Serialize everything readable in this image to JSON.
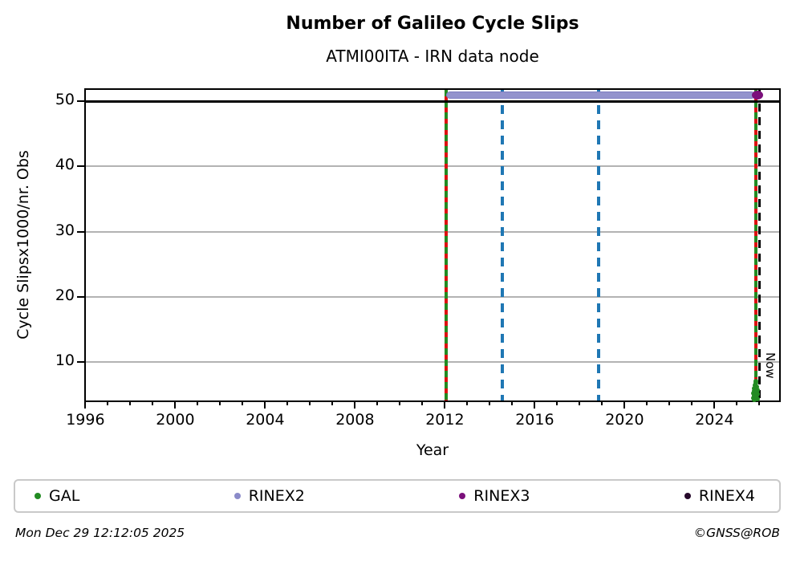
{
  "chart_data": {
    "type": "scatter",
    "title": "Number of Galileo Cycle Slips",
    "subtitle": "ATMI00ITA - IRN data node",
    "xlabel": "Year",
    "ylabel": "Cycle Slipsx1000/nr. Obs",
    "xlim": [
      1995.95,
      2026.95
    ],
    "ylim": [
      3.85,
      52.0
    ],
    "xticks": [
      1996,
      2000,
      2004,
      2008,
      2012,
      2016,
      2020,
      2024
    ],
    "xminor_step": 1,
    "yticks": [
      10,
      20,
      30,
      40,
      50
    ],
    "grid": "horizontal",
    "grid_color": "#b3b3b3",
    "threshold_line": {
      "y": 50,
      "color": "#000000"
    },
    "series": [
      {
        "name": "GAL",
        "color": "#228B22",
        "marker": "dot",
        "points": [
          [
            2025.72,
            4.5
          ],
          [
            2025.74,
            5.2
          ],
          [
            2025.76,
            4.2
          ],
          [
            2025.76,
            6.0
          ],
          [
            2025.78,
            5.6
          ],
          [
            2025.78,
            4.8
          ],
          [
            2025.8,
            6.4
          ],
          [
            2025.8,
            5.0
          ],
          [
            2025.82,
            4.3
          ],
          [
            2025.82,
            5.9
          ],
          [
            2025.84,
            6.8
          ],
          [
            2025.84,
            4.6
          ],
          [
            2025.86,
            5.4
          ],
          [
            2025.86,
            7.1
          ],
          [
            2025.88,
            4.9
          ],
          [
            2025.88,
            6.2
          ],
          [
            2025.9,
            5.7
          ],
          [
            2025.9,
            4.4
          ],
          [
            2025.92,
            5.1
          ]
        ]
      },
      {
        "name": "RINEX2",
        "color": "#8b8bc9",
        "marker": "thick-line",
        "y": 50.9,
        "x_start": 2012.05,
        "x_end": 2025.82
      },
      {
        "name": "RINEX3",
        "color": "#7b0f7b",
        "marker": "dot",
        "points": [
          [
            2025.93,
            50.9
          ]
        ]
      },
      {
        "name": "RINEX4",
        "color": "#26092b",
        "marker": "dot",
        "points": []
      }
    ],
    "vlines": [
      {
        "x": 2012.07,
        "style": "green-red",
        "colors": [
          "#228B22",
          "#dd1111"
        ]
      },
      {
        "x": 2014.57,
        "style": "blue-dashed",
        "color": "#1f77b4"
      },
      {
        "x": 2018.85,
        "style": "blue-dashed",
        "color": "#1f77b4"
      },
      {
        "x": 2025.84,
        "style": "green-red",
        "colors": [
          "#228B22",
          "#dd1111"
        ]
      },
      {
        "x": 2026.02,
        "style": "black-dashed",
        "color": "#000000",
        "label": "Now"
      }
    ],
    "legend": {
      "items": [
        "GAL",
        "RINEX2",
        "RINEX3",
        "RINEX4"
      ]
    },
    "footer": {
      "left": "Mon Dec 29 12:12:05 2025",
      "right": "©GNSS@ROB"
    }
  }
}
